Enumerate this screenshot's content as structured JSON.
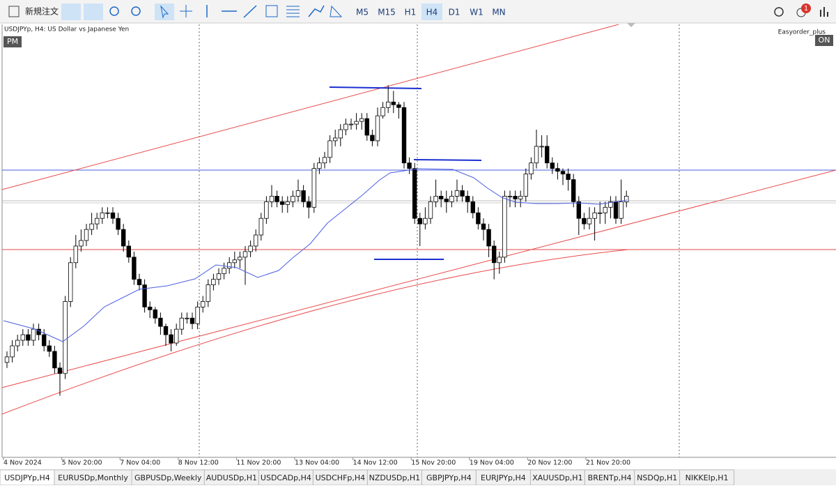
{
  "toolbar": {
    "new_order": "新規注文",
    "timeframes": [
      "M5",
      "M15",
      "H1",
      "H4",
      "D1",
      "W1",
      "MN"
    ],
    "active": "H4",
    "badge": "1"
  },
  "chart_data": {
    "type": "candlestick",
    "title": "USDJPYp, H4:  US Dollar vs Japanese Yen",
    "session": "PM",
    "expert": "Easyorder_plus",
    "expert_state": "ON",
    "ylim": [
      150.2,
      158.0
    ],
    "x_labels": [
      "4 Nov 2024",
      "5 Nov 20:00",
      "7 Nov 04:00",
      "8 Nov 12:00",
      "11 Nov 20:00",
      "13 Nov 04:00",
      "14 Nov 12:00",
      "15 Nov 20:00",
      "19 Nov 04:00",
      "20 Nov 12:00",
      "21 Nov 20:00"
    ],
    "up_color": "#ffffff",
    "down_color": "#000000",
    "ohlc": [
      [
        151.9,
        152.1,
        151.8,
        152.0
      ],
      [
        152.0,
        152.3,
        151.9,
        152.2
      ],
      [
        152.2,
        152.4,
        152.1,
        152.3
      ],
      [
        152.3,
        152.5,
        152.2,
        152.4
      ],
      [
        152.4,
        152.5,
        152.2,
        152.3
      ],
      [
        152.3,
        152.6,
        152.2,
        152.5
      ],
      [
        152.5,
        152.6,
        152.3,
        152.4
      ],
      [
        152.4,
        152.5,
        152.1,
        152.2
      ],
      [
        152.2,
        152.3,
        152.0,
        152.1
      ],
      [
        152.1,
        152.2,
        151.7,
        151.8
      ],
      [
        151.8,
        151.9,
        151.3,
        151.7
      ],
      [
        151.7,
        153.1,
        151.6,
        153.0
      ],
      [
        153.0,
        153.8,
        152.9,
        153.7
      ],
      [
        153.7,
        154.2,
        153.6,
        154.0
      ],
      [
        154.0,
        154.3,
        153.9,
        154.1
      ],
      [
        154.1,
        154.4,
        154.0,
        154.3
      ],
      [
        154.3,
        154.6,
        154.2,
        154.4
      ],
      [
        154.4,
        154.6,
        154.3,
        154.5
      ],
      [
        154.5,
        154.7,
        154.4,
        154.6
      ],
      [
        154.6,
        154.7,
        154.5,
        154.6
      ],
      [
        154.6,
        154.7,
        154.4,
        154.5
      ],
      [
        154.5,
        154.6,
        154.2,
        154.3
      ],
      [
        154.3,
        154.4,
        153.9,
        154.0
      ],
      [
        154.0,
        154.1,
        153.7,
        153.8
      ],
      [
        153.8,
        153.9,
        153.3,
        153.4
      ],
      [
        153.4,
        153.5,
        153.2,
        153.3
      ],
      [
        153.3,
        153.4,
        152.8,
        152.9
      ],
      [
        152.9,
        153.0,
        152.7,
        152.85
      ],
      [
        152.85,
        152.9,
        152.6,
        152.7
      ],
      [
        152.7,
        152.8,
        152.4,
        152.55
      ],
      [
        152.55,
        152.6,
        152.2,
        152.4
      ],
      [
        152.4,
        152.5,
        152.1,
        152.25
      ],
      [
        152.25,
        152.6,
        152.2,
        152.5
      ],
      [
        152.5,
        152.8,
        152.4,
        152.7
      ],
      [
        152.7,
        152.8,
        152.6,
        152.7
      ],
      [
        152.7,
        152.8,
        152.5,
        152.6
      ],
      [
        152.6,
        153.0,
        152.5,
        152.9
      ],
      [
        152.9,
        153.1,
        152.8,
        153.0
      ],
      [
        153.0,
        153.4,
        152.9,
        153.3
      ],
      [
        153.3,
        153.5,
        153.2,
        153.4
      ],
      [
        153.4,
        153.6,
        153.3,
        153.5
      ],
      [
        153.5,
        153.7,
        153.4,
        153.6
      ],
      [
        153.6,
        153.8,
        153.5,
        153.7
      ],
      [
        153.7,
        153.9,
        153.6,
        153.75
      ],
      [
        153.75,
        153.9,
        153.6,
        153.8
      ],
      [
        153.8,
        154.0,
        153.3,
        153.9
      ],
      [
        153.9,
        154.1,
        153.8,
        154.0
      ],
      [
        154.0,
        154.3,
        153.9,
        154.2
      ],
      [
        154.2,
        154.6,
        154.1,
        154.5
      ],
      [
        154.5,
        154.9,
        154.4,
        154.8
      ],
      [
        154.8,
        155.1,
        154.7,
        154.9
      ],
      [
        154.9,
        155.0,
        154.7,
        154.8
      ],
      [
        154.8,
        154.9,
        154.6,
        154.75
      ],
      [
        154.75,
        154.9,
        154.6,
        154.8
      ],
      [
        154.8,
        155.0,
        154.7,
        154.9
      ],
      [
        154.9,
        155.2,
        154.8,
        155.0
      ],
      [
        155.0,
        155.1,
        154.7,
        154.8
      ],
      [
        154.8,
        154.9,
        154.5,
        154.7
      ],
      [
        154.7,
        155.5,
        154.6,
        155.4
      ],
      [
        155.4,
        155.6,
        155.3,
        155.5
      ],
      [
        155.5,
        155.7,
        155.4,
        155.6
      ],
      [
        155.6,
        156.0,
        155.5,
        155.9
      ],
      [
        155.9,
        156.1,
        155.8,
        155.95
      ],
      [
        155.95,
        156.2,
        155.8,
        156.1
      ],
      [
        156.1,
        156.3,
        156.0,
        156.2
      ],
      [
        156.2,
        156.3,
        156.1,
        156.2
      ],
      [
        156.2,
        156.4,
        156.1,
        156.25
      ],
      [
        156.25,
        156.4,
        156.1,
        156.3
      ],
      [
        156.3,
        156.4,
        155.9,
        156.0
      ],
      [
        156.0,
        156.1,
        155.8,
        155.9
      ],
      [
        155.9,
        156.5,
        155.8,
        156.35
      ],
      [
        156.35,
        156.6,
        156.3,
        156.5
      ],
      [
        156.5,
        156.9,
        156.4,
        156.6
      ],
      [
        156.6,
        156.8,
        156.4,
        156.55
      ],
      [
        156.55,
        156.6,
        156.3,
        156.5
      ],
      [
        156.5,
        156.6,
        155.4,
        155.5
      ],
      [
        155.5,
        155.6,
        155.3,
        155.4
      ],
      [
        155.4,
        155.5,
        154.4,
        154.5
      ],
      [
        154.5,
        154.6,
        154.0,
        154.4
      ],
      [
        154.4,
        154.7,
        154.3,
        154.5
      ],
      [
        154.5,
        154.9,
        154.4,
        154.8
      ],
      [
        154.8,
        155.2,
        154.7,
        154.9
      ],
      [
        154.9,
        155.0,
        154.7,
        154.85
      ],
      [
        154.85,
        155.0,
        154.6,
        154.8
      ],
      [
        154.8,
        155.0,
        154.7,
        154.9
      ],
      [
        154.9,
        155.2,
        154.8,
        155.0
      ],
      [
        155.0,
        155.1,
        154.8,
        154.9
      ],
      [
        154.9,
        155.0,
        154.6,
        154.8
      ],
      [
        154.8,
        154.9,
        154.5,
        154.6
      ],
      [
        154.6,
        154.7,
        154.3,
        154.4
      ],
      [
        154.4,
        154.5,
        154.1,
        154.3
      ],
      [
        154.3,
        154.4,
        153.8,
        154.0
      ],
      [
        154.0,
        154.1,
        153.4,
        153.7
      ],
      [
        153.7,
        153.9,
        153.5,
        153.8
      ],
      [
        153.8,
        155.0,
        153.7,
        154.9
      ],
      [
        154.9,
        155.0,
        154.7,
        154.9
      ],
      [
        154.9,
        155.0,
        154.7,
        154.85
      ],
      [
        154.85,
        155.0,
        154.7,
        154.9
      ],
      [
        154.9,
        155.4,
        154.8,
        155.3
      ],
      [
        155.3,
        155.6,
        155.2,
        155.5
      ],
      [
        155.5,
        156.1,
        155.4,
        155.8
      ],
      [
        155.8,
        156.0,
        155.6,
        155.8
      ],
      [
        155.8,
        156.0,
        155.4,
        155.5
      ],
      [
        155.5,
        155.6,
        155.3,
        155.4
      ],
      [
        155.4,
        155.5,
        155.2,
        155.35
      ],
      [
        155.35,
        155.4,
        155.1,
        155.3
      ],
      [
        155.3,
        155.4,
        155.0,
        155.2
      ],
      [
        155.2,
        155.3,
        154.7,
        154.8
      ],
      [
        154.8,
        154.9,
        154.2,
        154.5
      ],
      [
        154.5,
        154.6,
        154.3,
        154.4
      ],
      [
        154.4,
        154.7,
        154.3,
        154.5
      ],
      [
        154.5,
        154.7,
        154.1,
        154.6
      ],
      [
        154.6,
        154.8,
        154.4,
        154.6
      ],
      [
        154.6,
        154.8,
        154.4,
        154.7
      ],
      [
        154.7,
        154.9,
        154.5,
        154.8
      ],
      [
        154.8,
        154.9,
        154.4,
        154.5
      ],
      [
        154.5,
        155.2,
        154.4,
        154.8
      ],
      [
        154.8,
        155.0,
        154.7,
        154.9
      ]
    ]
  },
  "tabs": [
    "USDJPYp,H4",
    "EURUSDp,Monthly",
    "GBPUSDp,Weekly",
    "AUDUSDp,H1",
    "USDCADp,H4",
    "USDCHFp,H4",
    "NZDUSDp,H1",
    "GBPJPYp,H4",
    "EURJPYp,H4",
    "XAUUSDp,H1",
    "BRENTp,H4",
    "NSDQp,H1",
    "NIKKEIp,H1"
  ]
}
